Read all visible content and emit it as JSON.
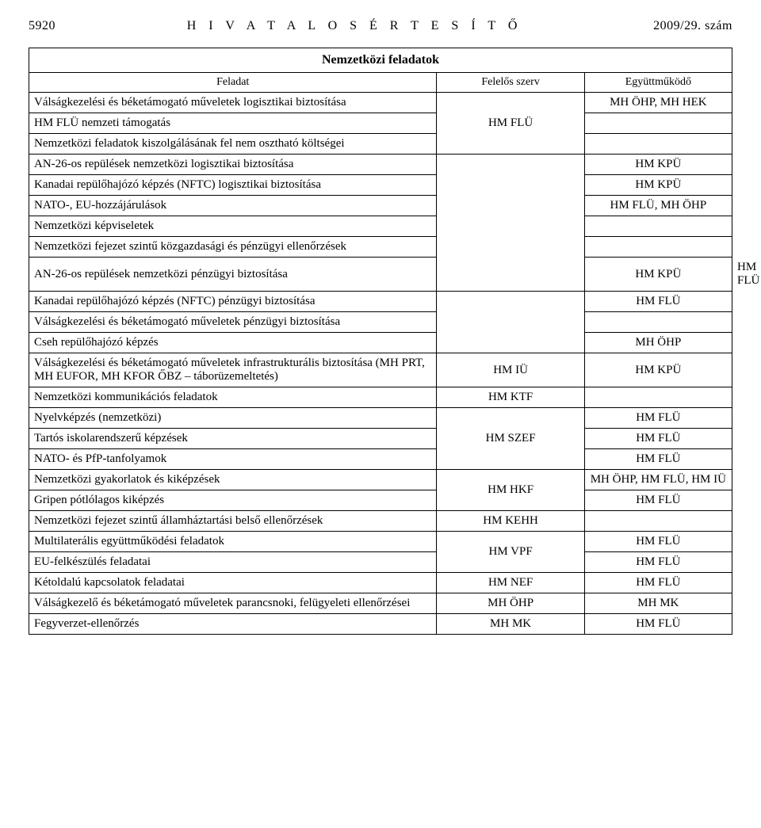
{
  "header": {
    "page_no": "5920",
    "title": "H I V A T A L O S   É R T E S Í T Ő",
    "issue": "2009/29. szám"
  },
  "section_title": "Nemzetközi feladatok",
  "col_headers": {
    "c1": "Feladat",
    "c2": "Felelős szerv",
    "c3": "Együttműködő"
  },
  "rows": [
    {
      "c1": "Válságkezelési és béketámogató műveletek logisztikai biztosítása",
      "c2": "",
      "c2span": 3,
      "c2val": "HM FLÜ",
      "c3": "MH ÖHP, MH HEK"
    },
    {
      "c1": "HM FLÜ nemzeti támogatás",
      "c3": ""
    },
    {
      "c1": "Nemzetközi feladatok kiszolgálásának fel nem osztható költségei",
      "c3": ""
    },
    {
      "c1": "AN-26-os repülések nemzetközi logisztikai biztosítása",
      "c2span": 6,
      "c2val": "",
      "c3": "HM KPÜ"
    },
    {
      "c1": "Kanadai repülőhajózó képzés (NFTC) logisztikai biztosítása",
      "c3": "HM KPÜ"
    },
    {
      "c1": "NATO-, EU-hozzájárulások",
      "c3": "HM FLÜ, MH ÖHP"
    },
    {
      "c1": "Nemzetközi képviseletek",
      "c3": ""
    },
    {
      "c1": "Nemzetközi fejezet szintű közgazdasági és pénzügyi ellenőrzések",
      "c3": ""
    },
    {
      "c1": "AN-26-os repülések nemzetközi pénzügyi biztosítása",
      "c2single": "HM KPÜ",
      "c3": "HM FLÜ"
    },
    {
      "c1": "Kanadai repülőhajózó képzés (NFTC) pénzügyi biztosítása",
      "c2span": 3,
      "c2val": "",
      "c3": "HM FLÜ"
    },
    {
      "c1": "Válságkezelési és béketámogató műveletek pénzügyi biztosítása",
      "c3": ""
    },
    {
      "c1": "Cseh repülőhajózó képzés",
      "c3": "MH ÖHP"
    },
    {
      "c1": "Válságkezelési és béketámogató műveletek infrastrukturális biztosítása (MH PRT, MH EUFOR, MH KFOR ŐBZ – táborüzemeltetés)",
      "c2single": "HM IÜ",
      "c3": "HM KPÜ"
    },
    {
      "c1": "Nemzetközi kommunikációs feladatok",
      "c2single": "HM KTF",
      "c3": ""
    },
    {
      "c1": "Nyelvképzés (nemzetközi)",
      "c2span": 3,
      "c2val": "HM SZEF",
      "c3": "HM FLÜ"
    },
    {
      "c1": "Tartós iskolarendszerű képzések",
      "c3": "HM FLÜ"
    },
    {
      "c1": "NATO- és PfP-tanfolyamok",
      "c3": "HM FLÜ"
    },
    {
      "c1": "Nemzetközi gyakorlatok és kiképzések",
      "c2span": 2,
      "c2val": "HM HKF",
      "c3": "MH ÖHP, HM FLÜ, HM IÜ"
    },
    {
      "c1": "Gripen pótlólagos kiképzés",
      "c3": "HM FLÜ"
    },
    {
      "c1": "Nemzetközi fejezet szintű államháztartási belső ellenőrzések",
      "c2single": "HM KEHH",
      "c3": ""
    },
    {
      "c1": "Multilaterális együttműködési feladatok",
      "c2span": 2,
      "c2val": "HM VPF",
      "c3": "HM FLÜ"
    },
    {
      "c1": "EU-felkészülés feladatai",
      "c3": "HM FLÜ"
    },
    {
      "c1": "Kétoldalú kapcsolatok feladatai",
      "c2single": "HM NEF",
      "c3": "HM FLÜ"
    },
    {
      "c1": "Válságkezelő és béketámogató műveletek parancsnoki, felügyeleti ellenőrzései",
      "c2single": "MH ÖHP",
      "c3": "MH MK"
    },
    {
      "c1": "Fegyverzet-ellenőrzés",
      "c2single": "MH MK",
      "c3": "HM FLÜ"
    }
  ]
}
